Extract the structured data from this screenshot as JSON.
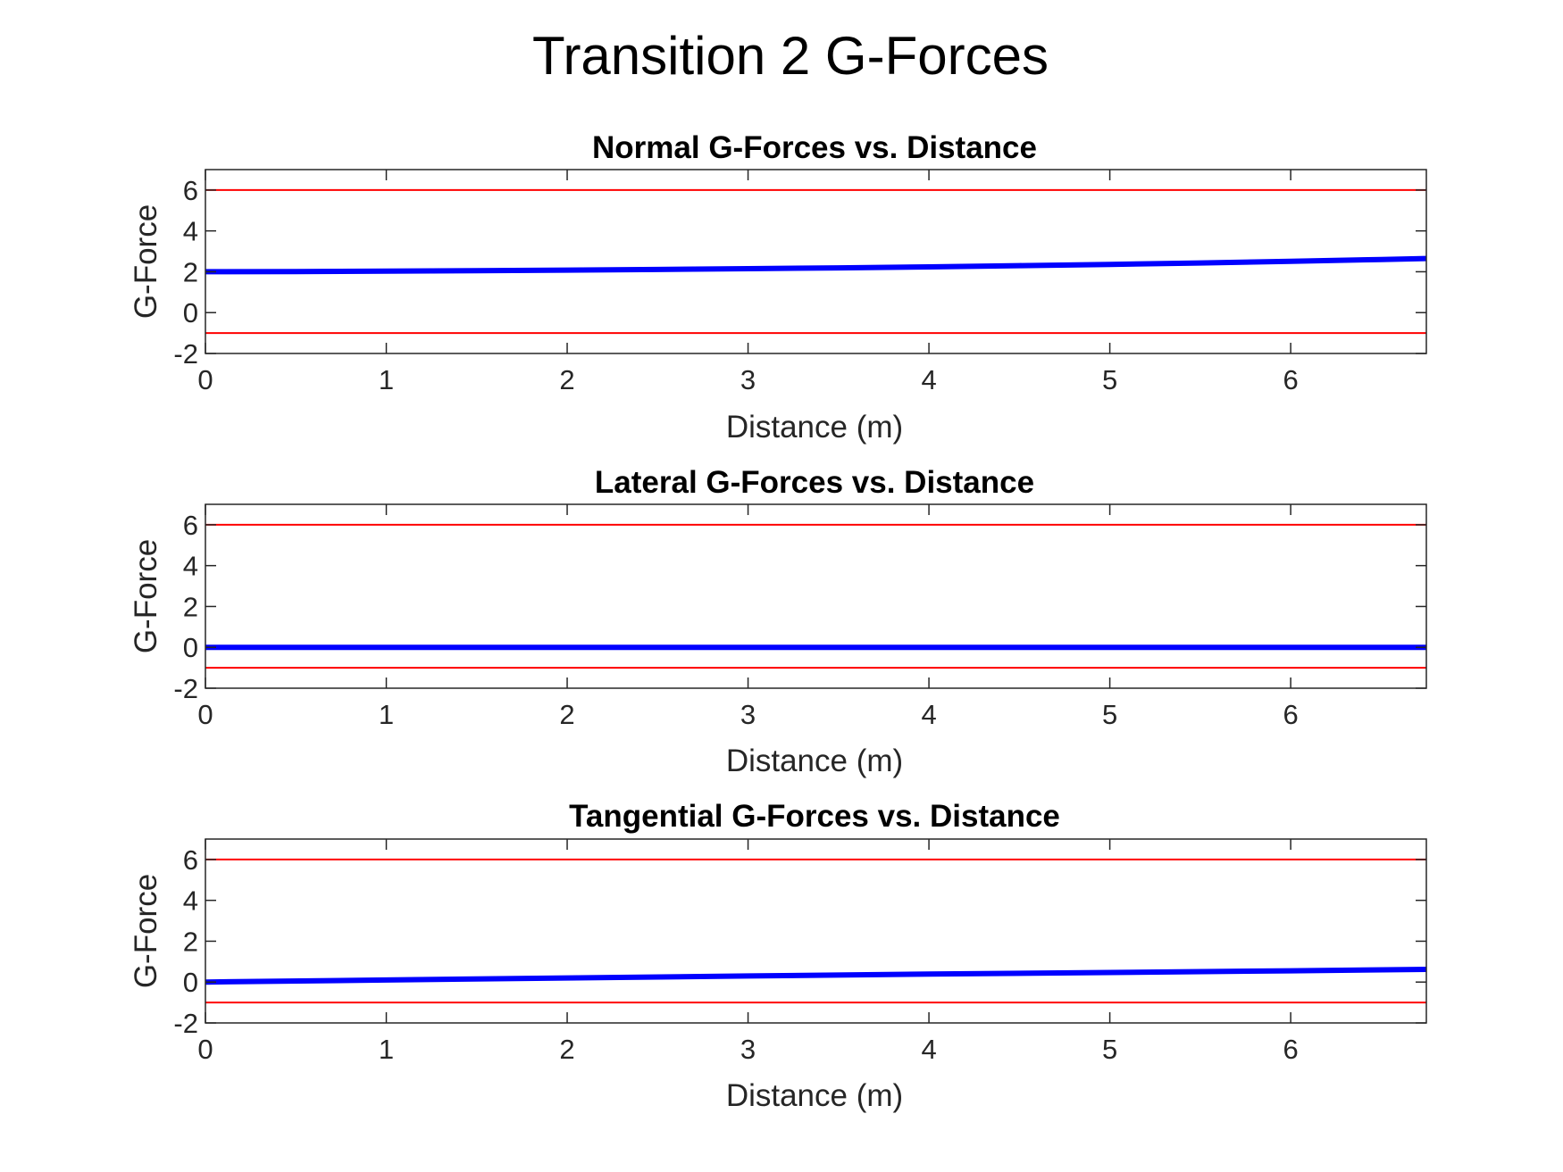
{
  "figure": {
    "title": "Transition 2 G-Forces"
  },
  "chart_data": [
    {
      "type": "line",
      "title": "Normal G-Forces vs. Distance",
      "xlabel": "Distance (m)",
      "ylabel": "G-Force",
      "xlim": [
        0,
        6.75
      ],
      "ylim": [
        -2,
        7
      ],
      "xticks": [
        0,
        1,
        2,
        3,
        4,
        5,
        6
      ],
      "yticks": [
        -2,
        0,
        2,
        4,
        6
      ],
      "grid": false,
      "series": [
        {
          "color": "#0000ff",
          "x": [
            0,
            0.5,
            1,
            1.5,
            2,
            2.5,
            3,
            3.5,
            4,
            4.5,
            5,
            5.5,
            6,
            6.5,
            6.75
          ],
          "y": [
            2.0,
            2.01,
            2.03,
            2.05,
            2.08,
            2.11,
            2.15,
            2.19,
            2.24,
            2.3,
            2.36,
            2.43,
            2.51,
            2.6,
            2.65
          ]
        },
        {
          "color": "#ff0000",
          "x": [
            0,
            6.75
          ],
          "y": [
            6,
            6
          ]
        },
        {
          "color": "#ff0000",
          "x": [
            0,
            6.75
          ],
          "y": [
            -1,
            -1
          ]
        }
      ]
    },
    {
      "type": "line",
      "title": "Lateral G-Forces vs. Distance",
      "xlabel": "Distance (m)",
      "ylabel": "G-Force",
      "xlim": [
        0,
        6.75
      ],
      "ylim": [
        -2,
        7
      ],
      "xticks": [
        0,
        1,
        2,
        3,
        4,
        5,
        6
      ],
      "yticks": [
        -2,
        0,
        2,
        4,
        6
      ],
      "grid": false,
      "series": [
        {
          "color": "#0000ff",
          "x": [
            0,
            6.75
          ],
          "y": [
            0,
            0
          ]
        },
        {
          "color": "#ff0000",
          "x": [
            0,
            6.75
          ],
          "y": [
            6,
            6
          ]
        },
        {
          "color": "#ff0000",
          "x": [
            0,
            6.75
          ],
          "y": [
            -1,
            -1
          ]
        }
      ]
    },
    {
      "type": "line",
      "title": "Tangential G-Forces vs. Distance",
      "xlabel": "Distance (m)",
      "ylabel": "G-Force",
      "xlim": [
        0,
        6.75
      ],
      "ylim": [
        -2,
        7
      ],
      "xticks": [
        0,
        1,
        2,
        3,
        4,
        5,
        6
      ],
      "yticks": [
        -2,
        0,
        2,
        4,
        6
      ],
      "grid": false,
      "series": [
        {
          "color": "#0000ff",
          "x": [
            0,
            1,
            2,
            3,
            4,
            5,
            6,
            6.75
          ],
          "y": [
            0.0,
            0.1,
            0.2,
            0.3,
            0.39,
            0.47,
            0.55,
            0.62
          ]
        },
        {
          "color": "#ff0000",
          "x": [
            0,
            6.75
          ],
          "y": [
            6,
            6
          ]
        },
        {
          "color": "#ff0000",
          "x": [
            0,
            6.75
          ],
          "y": [
            -1,
            -1
          ]
        }
      ]
    }
  ]
}
